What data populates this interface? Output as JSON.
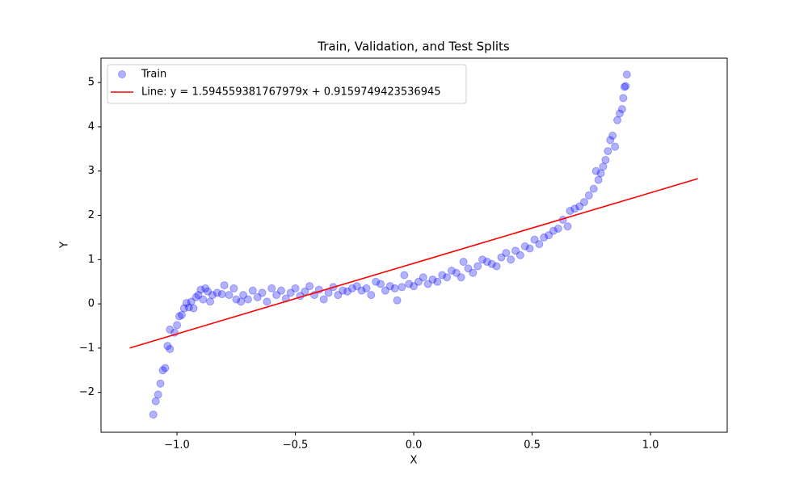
{
  "chart_data": {
    "type": "scatter",
    "title": "Train, Validation, and Test Splits",
    "xlabel": "X",
    "ylabel": "Y",
    "xlim": [
      -1.321,
      1.324
    ],
    "ylim": [
      -2.9,
      5.55
    ],
    "xticks": [
      {
        "value": -1.0,
        "label": "−1.0"
      },
      {
        "value": -0.5,
        "label": "−0.5"
      },
      {
        "value": 0.0,
        "label": "0.0"
      },
      {
        "value": 0.5,
        "label": "0.5"
      },
      {
        "value": 1.0,
        "label": "1.0"
      }
    ],
    "yticks": [
      {
        "value": -2,
        "label": "−2"
      },
      {
        "value": -1,
        "label": "−1"
      },
      0,
      1,
      2,
      3,
      4,
      5
    ],
    "legend": "upper left",
    "series": [
      {
        "name": "Train",
        "type": "scatter",
        "color": "#0000ff",
        "x": [
          -1.1,
          -1.09,
          -1.08,
          -1.07,
          -1.06,
          -1.05,
          -1.04,
          -1.03,
          -1.03,
          -1.01,
          -1.0,
          -0.99,
          -0.98,
          -0.97,
          -0.96,
          -0.95,
          -0.94,
          -0.93,
          -0.92,
          -0.91,
          -0.9,
          -0.89,
          -0.88,
          -0.87,
          -0.86,
          -0.85,
          -0.83,
          -0.81,
          -0.8,
          -0.78,
          -0.76,
          -0.75,
          -0.73,
          -0.72,
          -0.7,
          -0.68,
          -0.66,
          -0.64,
          -0.62,
          -0.6,
          -0.58,
          -0.56,
          -0.54,
          -0.52,
          -0.5,
          -0.48,
          -0.46,
          -0.44,
          -0.42,
          -0.4,
          -0.38,
          -0.36,
          -0.34,
          -0.32,
          -0.3,
          -0.28,
          -0.26,
          -0.24,
          -0.22,
          -0.2,
          -0.18,
          -0.16,
          -0.14,
          -0.12,
          -0.1,
          -0.08,
          -0.07,
          -0.05,
          -0.04,
          -0.02,
          0.0,
          0.02,
          0.04,
          0.06,
          0.08,
          0.1,
          0.12,
          0.14,
          0.16,
          0.18,
          0.2,
          0.21,
          0.23,
          0.25,
          0.27,
          0.29,
          0.31,
          0.33,
          0.35,
          0.37,
          0.39,
          0.41,
          0.43,
          0.45,
          0.47,
          0.49,
          0.51,
          0.53,
          0.55,
          0.57,
          0.59,
          0.61,
          0.63,
          0.65,
          0.66,
          0.68,
          0.7,
          0.72,
          0.74,
          0.76,
          0.77,
          0.78,
          0.79,
          0.8,
          0.81,
          0.82,
          0.83,
          0.84,
          0.85,
          0.86,
          0.87,
          0.88,
          0.885,
          0.89,
          0.895,
          0.9
        ],
        "values": [
          -2.5,
          -2.2,
          -2.05,
          -1.8,
          -1.5,
          -1.45,
          -0.95,
          -1.02,
          -0.58,
          -0.65,
          -0.48,
          -0.28,
          -0.25,
          -0.1,
          0.02,
          -0.08,
          0.05,
          -0.1,
          0.15,
          0.2,
          0.32,
          0.1,
          0.35,
          0.28,
          0.05,
          0.2,
          0.25,
          0.22,
          0.42,
          0.2,
          0.35,
          0.1,
          0.05,
          0.2,
          0.1,
          0.3,
          0.15,
          0.25,
          0.05,
          0.35,
          0.2,
          0.3,
          0.12,
          0.25,
          0.35,
          0.18,
          0.28,
          0.4,
          0.2,
          0.32,
          0.1,
          0.25,
          0.38,
          0.2,
          0.3,
          0.28,
          0.35,
          0.4,
          0.3,
          0.35,
          0.2,
          0.5,
          0.45,
          0.3,
          0.4,
          0.35,
          0.08,
          0.38,
          0.65,
          0.45,
          0.4,
          0.5,
          0.6,
          0.45,
          0.55,
          0.5,
          0.65,
          0.6,
          0.75,
          0.7,
          0.6,
          0.95,
          0.8,
          0.7,
          0.85,
          1.0,
          0.95,
          0.9,
          0.85,
          1.05,
          1.15,
          1.0,
          1.2,
          1.1,
          1.3,
          1.25,
          1.45,
          1.35,
          1.5,
          1.55,
          1.65,
          1.7,
          1.9,
          1.75,
          2.1,
          2.15,
          2.2,
          2.3,
          2.45,
          2.6,
          3.0,
          2.8,
          2.95,
          3.1,
          3.25,
          3.45,
          3.7,
          3.8,
          3.55,
          4.15,
          4.3,
          4.4,
          4.65,
          4.9,
          4.92,
          5.18
        ]
      },
      {
        "name": "Line: y = 1.594559381767979x + 0.9159749423536945",
        "type": "line",
        "color": "#ff0000",
        "x": [
          -1.2,
          1.2
        ],
        "values": [
          -0.997,
          2.829
        ]
      }
    ]
  }
}
